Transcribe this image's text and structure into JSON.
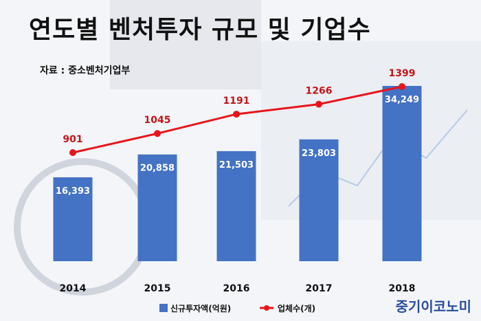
{
  "header": {
    "title": "연도별 벤처투자 규모 및 기업수",
    "source": "자료 : 중소벤처기업부"
  },
  "brand": "중기이코노미",
  "colors": {
    "bar": "#4472c4",
    "line": "#e8141c",
    "line_label": "#c0171b",
    "bar_label": "#ffffff"
  },
  "chart_data": {
    "type": "bar",
    "categories": [
      "2014",
      "2015",
      "2016",
      "2017",
      "2018"
    ],
    "series": [
      {
        "name": "신규투자액(억원)",
        "type": "bar",
        "values": [
          16393,
          20858,
          21503,
          23803,
          34249
        ],
        "labels": [
          "16,393",
          "20,858",
          "21,503",
          "23,803",
          "34,249"
        ]
      },
      {
        "name": "업체수(개)",
        "type": "line",
        "values": [
          901,
          1045,
          1191,
          1266,
          1399
        ],
        "labels": [
          "901",
          "1045",
          "1191",
          "1266",
          "1399"
        ]
      }
    ],
    "title": "연도별 벤처투자 규모 및 기업수",
    "xlabel": "",
    "ylabel": "",
    "grid": false,
    "legend": "bottom"
  }
}
